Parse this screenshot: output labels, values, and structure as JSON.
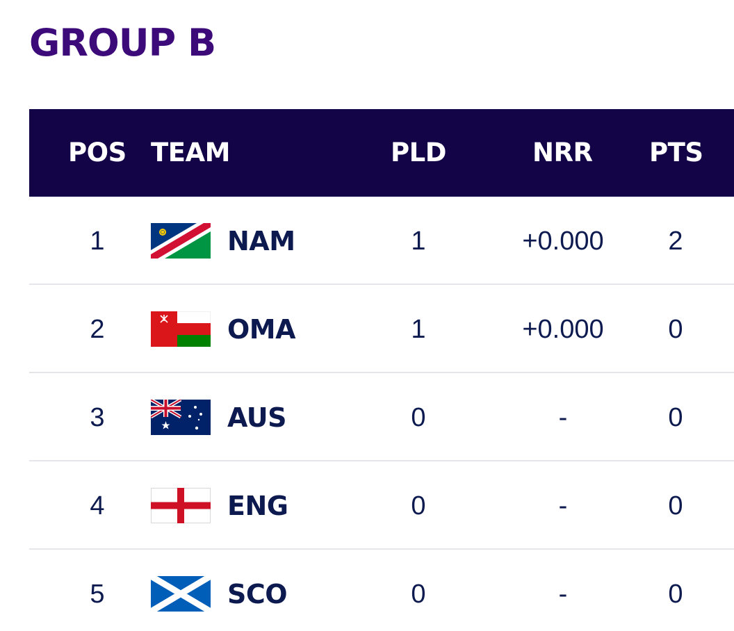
{
  "group": {
    "title": "GROUP B"
  },
  "columns": {
    "pos": "POS",
    "team": "TEAM",
    "pld": "PLD",
    "nrr": "NRR",
    "pts": "PTS"
  },
  "colors": {
    "title": "#3d0a7a",
    "header_bg": "#120447",
    "text": "#0d1a4f",
    "divider": "#e6e6ea"
  },
  "rows": [
    {
      "pos": "1",
      "flag": "namibia-flag-icon",
      "code": "NAM",
      "pld": "1",
      "nrr": "+0.000",
      "pts": "2"
    },
    {
      "pos": "2",
      "flag": "oman-flag-icon",
      "code": "OMA",
      "pld": "1",
      "nrr": "+0.000",
      "pts": "0"
    },
    {
      "pos": "3",
      "flag": "australia-flag-icon",
      "code": "AUS",
      "pld": "0",
      "nrr": "-",
      "pts": "0"
    },
    {
      "pos": "4",
      "flag": "england-flag-icon",
      "code": "ENG",
      "pld": "0",
      "nrr": "-",
      "pts": "0"
    },
    {
      "pos": "5",
      "flag": "scotland-flag-icon",
      "code": "SCO",
      "pld": "0",
      "nrr": "-",
      "pts": "0"
    }
  ]
}
